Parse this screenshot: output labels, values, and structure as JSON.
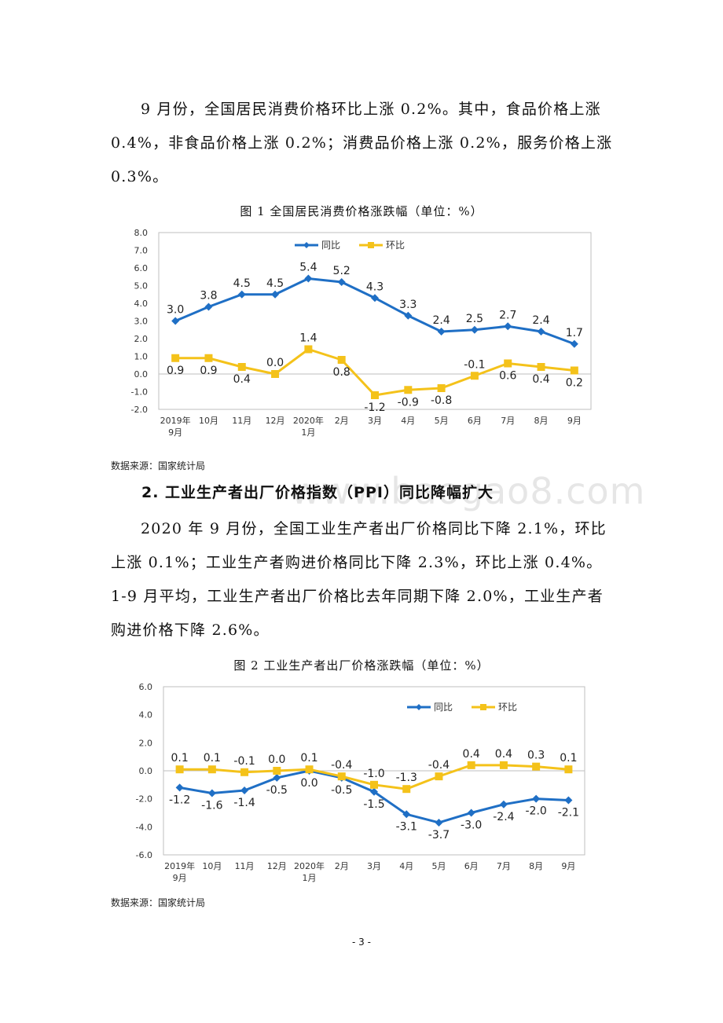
{
  "paragraphs": {
    "p1": "9 月份，全国居民消费价格环比上涨 0.2%。其中，食品价格上涨 0.4%，非食品价格上涨 0.2%；消费品价格上涨 0.2%，服务价格上涨 0.3%。",
    "p2": "2020 年 9 月份，全国工业生产者出厂价格同比下降 2.1%，环比上涨 0.1%；工业生产者购进价格同比下降 2.3%，环比上涨 0.4%。1-9 月平均，工业生产者出厂价格比去年同期下降 2.0%，工业生产者购进价格下降 2.6%。"
  },
  "watermark": "www.baogao8.com",
  "section_heading": "2. 工业生产者出厂价格指数（PPI）同比降幅扩大",
  "figure1": {
    "caption": "图 1    全国居民消费价格涨跌幅（单位：%）",
    "source": "数据来源：国家统计局"
  },
  "figure2": {
    "caption": "图 2    工业生产者出厂价格涨跌幅（单位：%）",
    "source": "数据来源：国家统计局"
  },
  "page_number": "- 3 -",
  "colors": {
    "yoy": "#1f6fc5",
    "mom": "#f4c21a",
    "frame": "#bfbfbf"
  },
  "chart_data": [
    {
      "type": "line",
      "categories": [
        [
          "2019年",
          "9月"
        ],
        [
          "10月"
        ],
        [
          "11月"
        ],
        [
          "12月"
        ],
        [
          "2020年",
          "1月"
        ],
        [
          "2月"
        ],
        [
          "3月"
        ],
        [
          "4月"
        ],
        [
          "5月"
        ],
        [
          "6月"
        ],
        [
          "7月"
        ],
        [
          "8月"
        ],
        [
          "9月"
        ]
      ],
      "series": [
        {
          "name": "同比",
          "values": [
            3.0,
            3.8,
            4.5,
            4.5,
            5.4,
            5.2,
            4.3,
            3.3,
            2.4,
            2.5,
            2.7,
            2.4,
            1.7
          ],
          "marker": "diamond",
          "color": "#1f6fc5"
        },
        {
          "name": "环比",
          "values": [
            0.9,
            0.9,
            0.4,
            0.0,
            1.4,
            0.8,
            -1.2,
            -0.9,
            -0.8,
            -0.1,
            0.6,
            0.4,
            0.2
          ],
          "marker": "square",
          "color": "#f4c21a"
        }
      ],
      "ylim": [
        -2.0,
        8.0
      ],
      "yticks": [
        "8.0",
        "7.0",
        "6.0",
        "5.0",
        "4.0",
        "3.0",
        "2.0",
        "1.0",
        "0.0",
        "-1.0",
        "-2.0"
      ],
      "data_labels": {
        "同比": [
          "3.0",
          "3.8",
          "4.5",
          "4.5",
          "5.4",
          "5.2",
          "4.3",
          "3.3",
          "2.4",
          "2.5",
          "2.7",
          "2.4",
          "1.7"
        ],
        "环比": [
          "0.9",
          "0.9",
          "0.4",
          "0.0",
          "1.4",
          "0.8",
          "-1.2",
          "-0.9",
          "-0.8",
          "-0.1",
          "0.6",
          "0.4",
          "0.2"
        ]
      },
      "legend": "top-center",
      "grid": false
    },
    {
      "type": "line",
      "categories": [
        [
          "2019年",
          "9月"
        ],
        [
          "10月"
        ],
        [
          "11月"
        ],
        [
          "12月"
        ],
        [
          "2020年",
          "1月"
        ],
        [
          "2月"
        ],
        [
          "3月"
        ],
        [
          "4月"
        ],
        [
          "5月"
        ],
        [
          "6月"
        ],
        [
          "7月"
        ],
        [
          "8月"
        ],
        [
          "9月"
        ]
      ],
      "series": [
        {
          "name": "同比",
          "values": [
            -1.2,
            -1.6,
            -1.4,
            -0.5,
            0.0,
            -0.5,
            -1.5,
            -3.1,
            -3.7,
            -3.0,
            -2.4,
            -2.0,
            -2.1
          ],
          "marker": "diamond",
          "color": "#1f6fc5"
        },
        {
          "name": "环比",
          "values": [
            0.1,
            0.1,
            -0.1,
            0.0,
            0.1,
            -0.4,
            -1.0,
            -1.3,
            -0.4,
            0.4,
            0.4,
            0.3,
            0.1
          ],
          "marker": "square",
          "color": "#f4c21a"
        }
      ],
      "ylim": [
        -6.0,
        6.0
      ],
      "yticks": [
        "6.0",
        "4.0",
        "2.0",
        "0.0",
        "-2.0",
        "-4.0",
        "-6.0"
      ],
      "data_labels": {
        "同比": [
          "-1.2",
          "-1.6",
          "-1.4",
          "-0.5",
          "0.0",
          "-0.5",
          "-1.5",
          "-3.1",
          "-3.7",
          "-3.0",
          "-2.4",
          "-2.0",
          "-2.1"
        ],
        "环比": [
          "0.1",
          "0.1",
          "-0.1",
          "0.0",
          "0.1",
          "-0.4",
          "-1.0",
          "-1.3",
          "-0.4",
          "0.4",
          "0.4",
          "0.3",
          "0.1"
        ]
      },
      "legend": "top-right",
      "grid": false
    }
  ]
}
